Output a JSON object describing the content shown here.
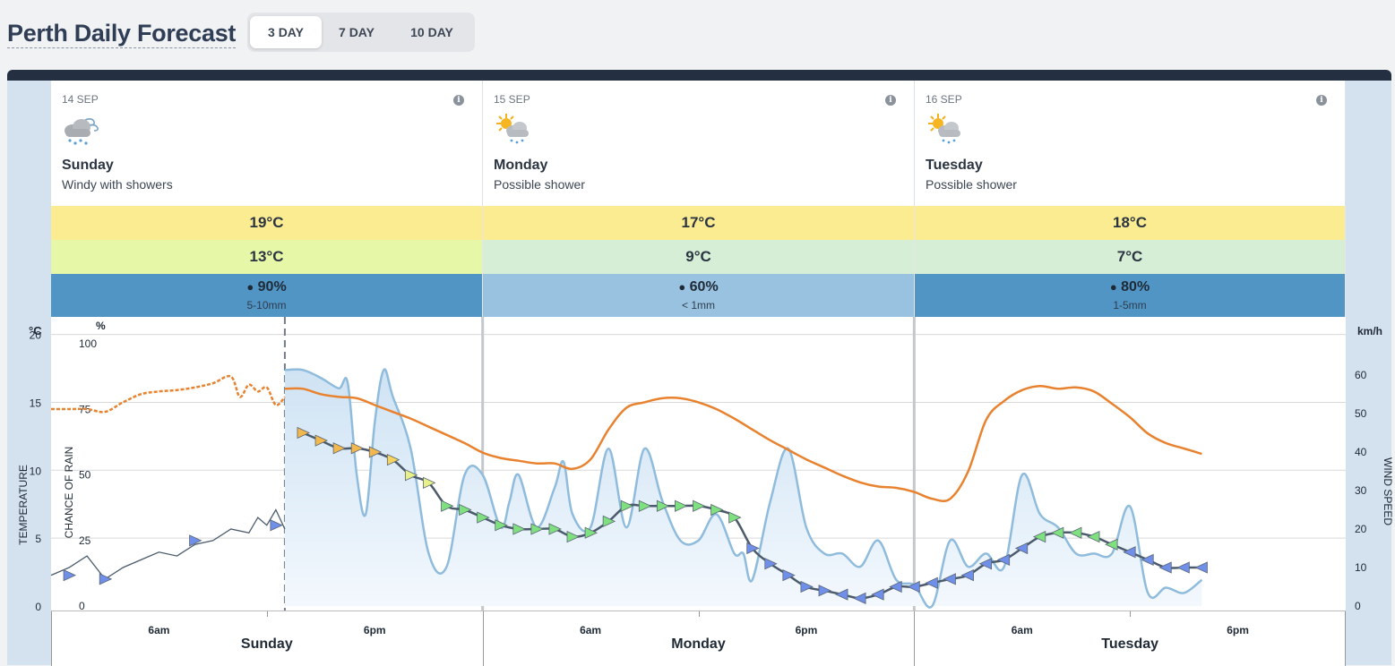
{
  "page": {
    "title": "Perth Daily Forecast",
    "tabs": [
      {
        "label": "3 DAY",
        "active": true
      },
      {
        "label": "7 DAY",
        "active": false
      },
      {
        "label": "10 DAY",
        "active": false
      }
    ]
  },
  "days": [
    {
      "date": "14 SEP",
      "name": "Sunday",
      "description": "Windy with showers",
      "icon": "cloud-rain-wind-icon",
      "max": "19°C",
      "min": "13°C",
      "rain_chance": "90%",
      "rain_amount": "5-10mm",
      "info": "i"
    },
    {
      "date": "15 SEP",
      "name": "Monday",
      "description": "Possible shower",
      "icon": "sun-cloud-rain-icon",
      "max": "17°C",
      "min": "9°C",
      "rain_chance": "60%",
      "rain_amount": "< 1mm",
      "info": "i"
    },
    {
      "date": "16 SEP",
      "name": "Tuesday",
      "description": "Possible shower",
      "icon": "sun-cloud-rain-icon",
      "max": "18°C",
      "min": "7°C",
      "rain_chance": "80%",
      "rain_amount": "1-5mm",
      "info": "i"
    }
  ],
  "colors": {
    "max_band": "#fbec92",
    "min_band_warm": "#e7f7a8",
    "min_band_cool": "#d5eed5",
    "rain_high": "#5195c5",
    "rain_low": "#99c2e1",
    "temperature_line": "#e8822e",
    "rain_line": "#8fbcdc",
    "wind_line": "#4b5b6b"
  },
  "chart_data": {
    "type": "line",
    "temp_unit": "°C",
    "temp_axis_label": "TEMPERATURE",
    "rain_axis_label": "CHANCE OF RAIN",
    "rain_unit": "%",
    "wind_unit": "km/h",
    "wind_axis_label": "WIND SPEED",
    "temp_ticks": [
      "0",
      "5",
      "10",
      "15",
      "20"
    ],
    "rain_ticks": [
      "0",
      "25",
      "50",
      "75",
      "100"
    ],
    "wind_ticks": [
      "0",
      "10",
      "20",
      "30",
      "40",
      "50",
      "60"
    ],
    "x_ticks": [
      "6am",
      "6pm",
      "6am",
      "6pm",
      "6am",
      "6pm"
    ],
    "x_days": [
      "Sunday",
      "Monday",
      "Tuesday"
    ],
    "hours_range": [
      0,
      72
    ],
    "temp_range": [
      0,
      20.5
    ],
    "rain_range": [
      0,
      100
    ],
    "wind_range": [
      0,
      70
    ],
    "temperature_observed": [
      [
        0,
        14.5
      ],
      [
        1,
        14.5
      ],
      [
        2,
        14.5
      ],
      [
        3,
        14.3
      ],
      [
        4,
        15.0
      ],
      [
        5,
        15.6
      ],
      [
        6,
        15.8
      ],
      [
        7,
        15.9
      ],
      [
        8,
        16.1
      ],
      [
        9,
        16.4
      ],
      [
        10,
        16.9
      ],
      [
        10.5,
        15.4
      ],
      [
        11,
        16.3
      ],
      [
        11.5,
        15.8
      ],
      [
        12,
        16.1
      ],
      [
        12.5,
        14.8
      ],
      [
        13,
        15.4
      ]
    ],
    "temperature_forecast": [
      [
        13,
        16.0
      ],
      [
        14,
        16.0
      ],
      [
        15,
        15.6
      ],
      [
        16,
        15.4
      ],
      [
        17,
        15.3
      ],
      [
        18,
        14.8
      ],
      [
        19,
        14.3
      ],
      [
        20,
        13.8
      ],
      [
        21,
        13.2
      ],
      [
        22,
        12.6
      ],
      [
        23,
        12.0
      ],
      [
        24,
        11.3
      ],
      [
        25,
        10.9
      ],
      [
        26,
        10.7
      ],
      [
        27,
        10.5
      ],
      [
        28,
        10.5
      ],
      [
        29,
        10.1
      ],
      [
        30,
        10.8
      ],
      [
        31,
        13.0
      ],
      [
        32,
        14.6
      ],
      [
        33,
        15.0
      ],
      [
        34,
        15.3
      ],
      [
        35,
        15.3
      ],
      [
        36,
        15.0
      ],
      [
        37,
        14.5
      ],
      [
        38,
        13.8
      ],
      [
        39,
        13.0
      ],
      [
        40,
        12.2
      ],
      [
        41,
        11.5
      ],
      [
        42,
        10.8
      ],
      [
        43,
        10.2
      ],
      [
        44,
        9.6
      ],
      [
        45,
        9.1
      ],
      [
        46,
        8.8
      ],
      [
        47,
        8.7
      ],
      [
        48,
        8.4
      ],
      [
        49,
        7.9
      ],
      [
        50,
        7.9
      ],
      [
        51,
        9.9
      ],
      [
        52,
        13.7
      ],
      [
        53,
        15.1
      ],
      [
        54,
        15.9
      ],
      [
        55,
        16.2
      ],
      [
        56,
        16.0
      ],
      [
        57,
        16.1
      ],
      [
        58,
        15.8
      ],
      [
        59,
        14.9
      ],
      [
        60,
        13.9
      ],
      [
        61,
        12.7
      ],
      [
        62,
        12.0
      ],
      [
        63,
        11.6
      ],
      [
        64,
        11.2
      ]
    ],
    "rain_chance": [
      [
        13,
        90
      ],
      [
        14,
        90
      ],
      [
        15,
        87
      ],
      [
        16,
        83
      ],
      [
        16.5,
        85
      ],
      [
        17,
        50
      ],
      [
        17.5,
        35
      ],
      [
        18,
        70
      ],
      [
        18.5,
        90
      ],
      [
        19,
        80
      ],
      [
        20,
        60
      ],
      [
        21,
        20
      ],
      [
        22,
        15
      ],
      [
        23,
        50
      ],
      [
        24,
        50
      ],
      [
        25,
        30
      ],
      [
        25.5,
        40
      ],
      [
        26,
        50
      ],
      [
        27,
        30
      ],
      [
        28,
        45
      ],
      [
        28.5,
        55
      ],
      [
        29,
        35
      ],
      [
        30,
        30
      ],
      [
        31,
        60
      ],
      [
        32,
        30
      ],
      [
        33,
        60
      ],
      [
        34,
        40
      ],
      [
        35,
        25
      ],
      [
        36,
        25
      ],
      [
        37,
        35
      ],
      [
        38,
        20
      ],
      [
        38.5,
        20
      ],
      [
        39,
        10
      ],
      [
        40,
        40
      ],
      [
        41,
        60
      ],
      [
        42,
        30
      ],
      [
        43,
        20
      ],
      [
        44,
        20
      ],
      [
        45,
        15
      ],
      [
        46,
        25
      ],
      [
        47,
        10
      ],
      [
        48,
        8
      ],
      [
        49,
        0
      ],
      [
        50,
        25
      ],
      [
        51,
        15
      ],
      [
        52,
        20
      ],
      [
        53,
        15
      ],
      [
        54,
        50
      ],
      [
        55,
        35
      ],
      [
        56,
        30
      ],
      [
        57,
        20
      ],
      [
        58,
        20
      ],
      [
        59,
        20
      ],
      [
        60,
        38
      ],
      [
        61,
        5
      ],
      [
        62,
        7
      ],
      [
        63,
        5
      ],
      [
        64,
        10
      ]
    ],
    "wind_observed": [
      [
        0,
        8
      ],
      [
        1,
        10
      ],
      [
        2,
        13
      ],
      [
        3,
        7
      ],
      [
        4,
        10
      ],
      [
        5,
        12
      ],
      [
        6,
        14
      ],
      [
        7,
        13
      ],
      [
        8,
        16
      ],
      [
        9,
        17
      ],
      [
        10,
        20
      ],
      [
        11,
        19
      ],
      [
        11.5,
        23
      ],
      [
        12,
        21
      ],
      [
        12.5,
        25
      ],
      [
        13,
        20
      ]
    ],
    "wind_forecast": [
      [
        14,
        45
      ],
      [
        15,
        43
      ],
      [
        16,
        41
      ],
      [
        17,
        41
      ],
      [
        18,
        40
      ],
      [
        19,
        38
      ],
      [
        20,
        34
      ],
      [
        21,
        32
      ],
      [
        22,
        26
      ],
      [
        23,
        25
      ],
      [
        24,
        23
      ],
      [
        25,
        21
      ],
      [
        26,
        20
      ],
      [
        27,
        20
      ],
      [
        28,
        20
      ],
      [
        29,
        18
      ],
      [
        30,
        19
      ],
      [
        31,
        22
      ],
      [
        32,
        26
      ],
      [
        33,
        26
      ],
      [
        34,
        26
      ],
      [
        35,
        26
      ],
      [
        36,
        26
      ],
      [
        37,
        25
      ],
      [
        38,
        23
      ],
      [
        39,
        15
      ],
      [
        40,
        11
      ],
      [
        41,
        8
      ],
      [
        42,
        5
      ],
      [
        43,
        4
      ],
      [
        44,
        3
      ],
      [
        45,
        2
      ],
      [
        46,
        3
      ],
      [
        47,
        5
      ],
      [
        48,
        5
      ],
      [
        49,
        6
      ],
      [
        50,
        7
      ],
      [
        51,
        8
      ],
      [
        52,
        11
      ],
      [
        53,
        12
      ],
      [
        54,
        15
      ],
      [
        55,
        18
      ],
      [
        56,
        19
      ],
      [
        57,
        19
      ],
      [
        58,
        18
      ],
      [
        59,
        16
      ],
      [
        60,
        14
      ],
      [
        61,
        12
      ],
      [
        62,
        10
      ],
      [
        63,
        10
      ],
      [
        64,
        10
      ]
    ]
  }
}
